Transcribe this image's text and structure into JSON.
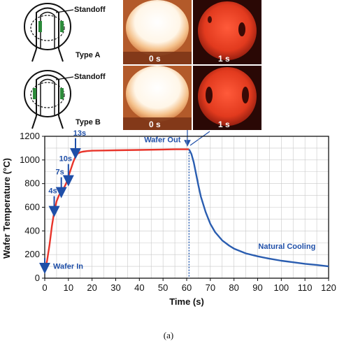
{
  "schematics": [
    {
      "standoff_label": "Standoff",
      "type_label": "Type A"
    },
    {
      "standoff_label": "Standoff",
      "type_label": "Type B"
    }
  ],
  "photos": [
    {
      "label": "0 s",
      "kind": "hot-white"
    },
    {
      "label": "1 s",
      "kind": "dark-red"
    },
    {
      "label": "0 s",
      "kind": "hot-white"
    },
    {
      "label": "1 s",
      "kind": "dark-red"
    }
  ],
  "colors": {
    "heating": "#e8342a",
    "cooling": "#2a5db0",
    "annotation": "#1f4fa8",
    "grid": "#c8c8c8"
  },
  "chart_data": {
    "type": "line",
    "xlabel": "Time (s)",
    "ylabel": "Wafer Temperature (°C)",
    "xlim": [
      0,
      120
    ],
    "ylim": [
      0,
      1200
    ],
    "xticks": [
      0,
      10,
      20,
      30,
      40,
      50,
      60,
      70,
      80,
      90,
      100,
      110,
      120
    ],
    "yticks": [
      0,
      200,
      400,
      600,
      800,
      1000,
      1200
    ],
    "grid": true,
    "series": [
      {
        "color": "#e8342a",
        "x": [
          0,
          1,
          2,
          3,
          4,
          5,
          6,
          7,
          8,
          9,
          10,
          11,
          12,
          13,
          14,
          15,
          16,
          18,
          20,
          25,
          30,
          40,
          50,
          55,
          61
        ],
        "y": [
          60,
          150,
          280,
          440,
          560,
          650,
          700,
          730,
          760,
          800,
          860,
          920,
          980,
          1030,
          1055,
          1065,
          1070,
          1075,
          1078,
          1080,
          1082,
          1085,
          1088,
          1090,
          1090
        ]
      },
      {
        "color": "#2a5db0",
        "x": [
          61,
          62,
          63,
          64,
          65,
          66,
          68,
          70,
          72,
          75,
          78,
          80,
          85,
          90,
          95,
          100,
          105,
          110,
          115,
          120
        ],
        "y": [
          1090,
          1050,
          980,
          880,
          780,
          690,
          560,
          460,
          390,
          320,
          275,
          250,
          210,
          185,
          165,
          148,
          135,
          122,
          112,
          100
        ]
      }
    ],
    "annotations": [
      {
        "text": "Wafer In",
        "x": 0,
        "y": 60
      },
      {
        "text": "4s",
        "x": 4,
        "y": 540
      },
      {
        "text": "7s",
        "x": 7,
        "y": 700
      },
      {
        "text": "10s",
        "x": 10,
        "y": 800
      },
      {
        "text": "13s",
        "x": 13,
        "y": 1030
      },
      {
        "text": "Wafer Out",
        "x": 61,
        "y": 1090
      },
      {
        "text": "Natural Cooling",
        "x": 95,
        "y": 260
      }
    ],
    "marker_line_x": 61
  },
  "caption": "(a)"
}
